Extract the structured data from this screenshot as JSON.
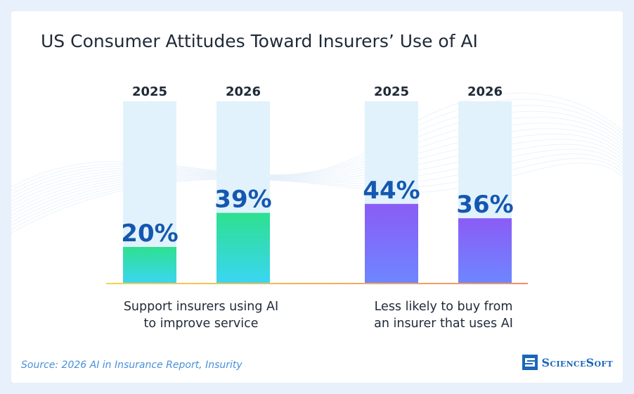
{
  "title": "US Consumer Attitudes Toward Insurers’ Use of AI",
  "source": "Source: 2026 AI in Insurance Report, Insurity",
  "logo": {
    "text": "ScienceSoft"
  },
  "colors": {
    "green_top": "#2ee08f",
    "green_bottom": "#3ad6f2",
    "purple_top": "#8a5cf6",
    "purple_bottom": "#6e86ff",
    "track": "#e1f2fc",
    "value_text": "#1557b0",
    "baseline_left": "#f5d44a",
    "baseline_right": "#f28e6b"
  },
  "chart_data": {
    "type": "bar",
    "ylim": [
      0,
      100
    ],
    "groups": [
      {
        "label": "Support insurers using AI to improve service",
        "label_lines": [
          "Support insurers using AI",
          "to improve service"
        ],
        "palette": "green",
        "bars": [
          {
            "year": "2025",
            "value": 20,
            "label": "20%"
          },
          {
            "year": "2026",
            "value": 39,
            "label": "39%"
          }
        ]
      },
      {
        "label": "Less likely to buy from an insurer that uses AI",
        "label_lines": [
          "Less likely to buy from",
          "an insurer that uses AI"
        ],
        "palette": "purple",
        "bars": [
          {
            "year": "2025",
            "value": 44,
            "label": "44%"
          },
          {
            "year": "2026",
            "value": 36,
            "label": "36%"
          }
        ]
      }
    ]
  }
}
